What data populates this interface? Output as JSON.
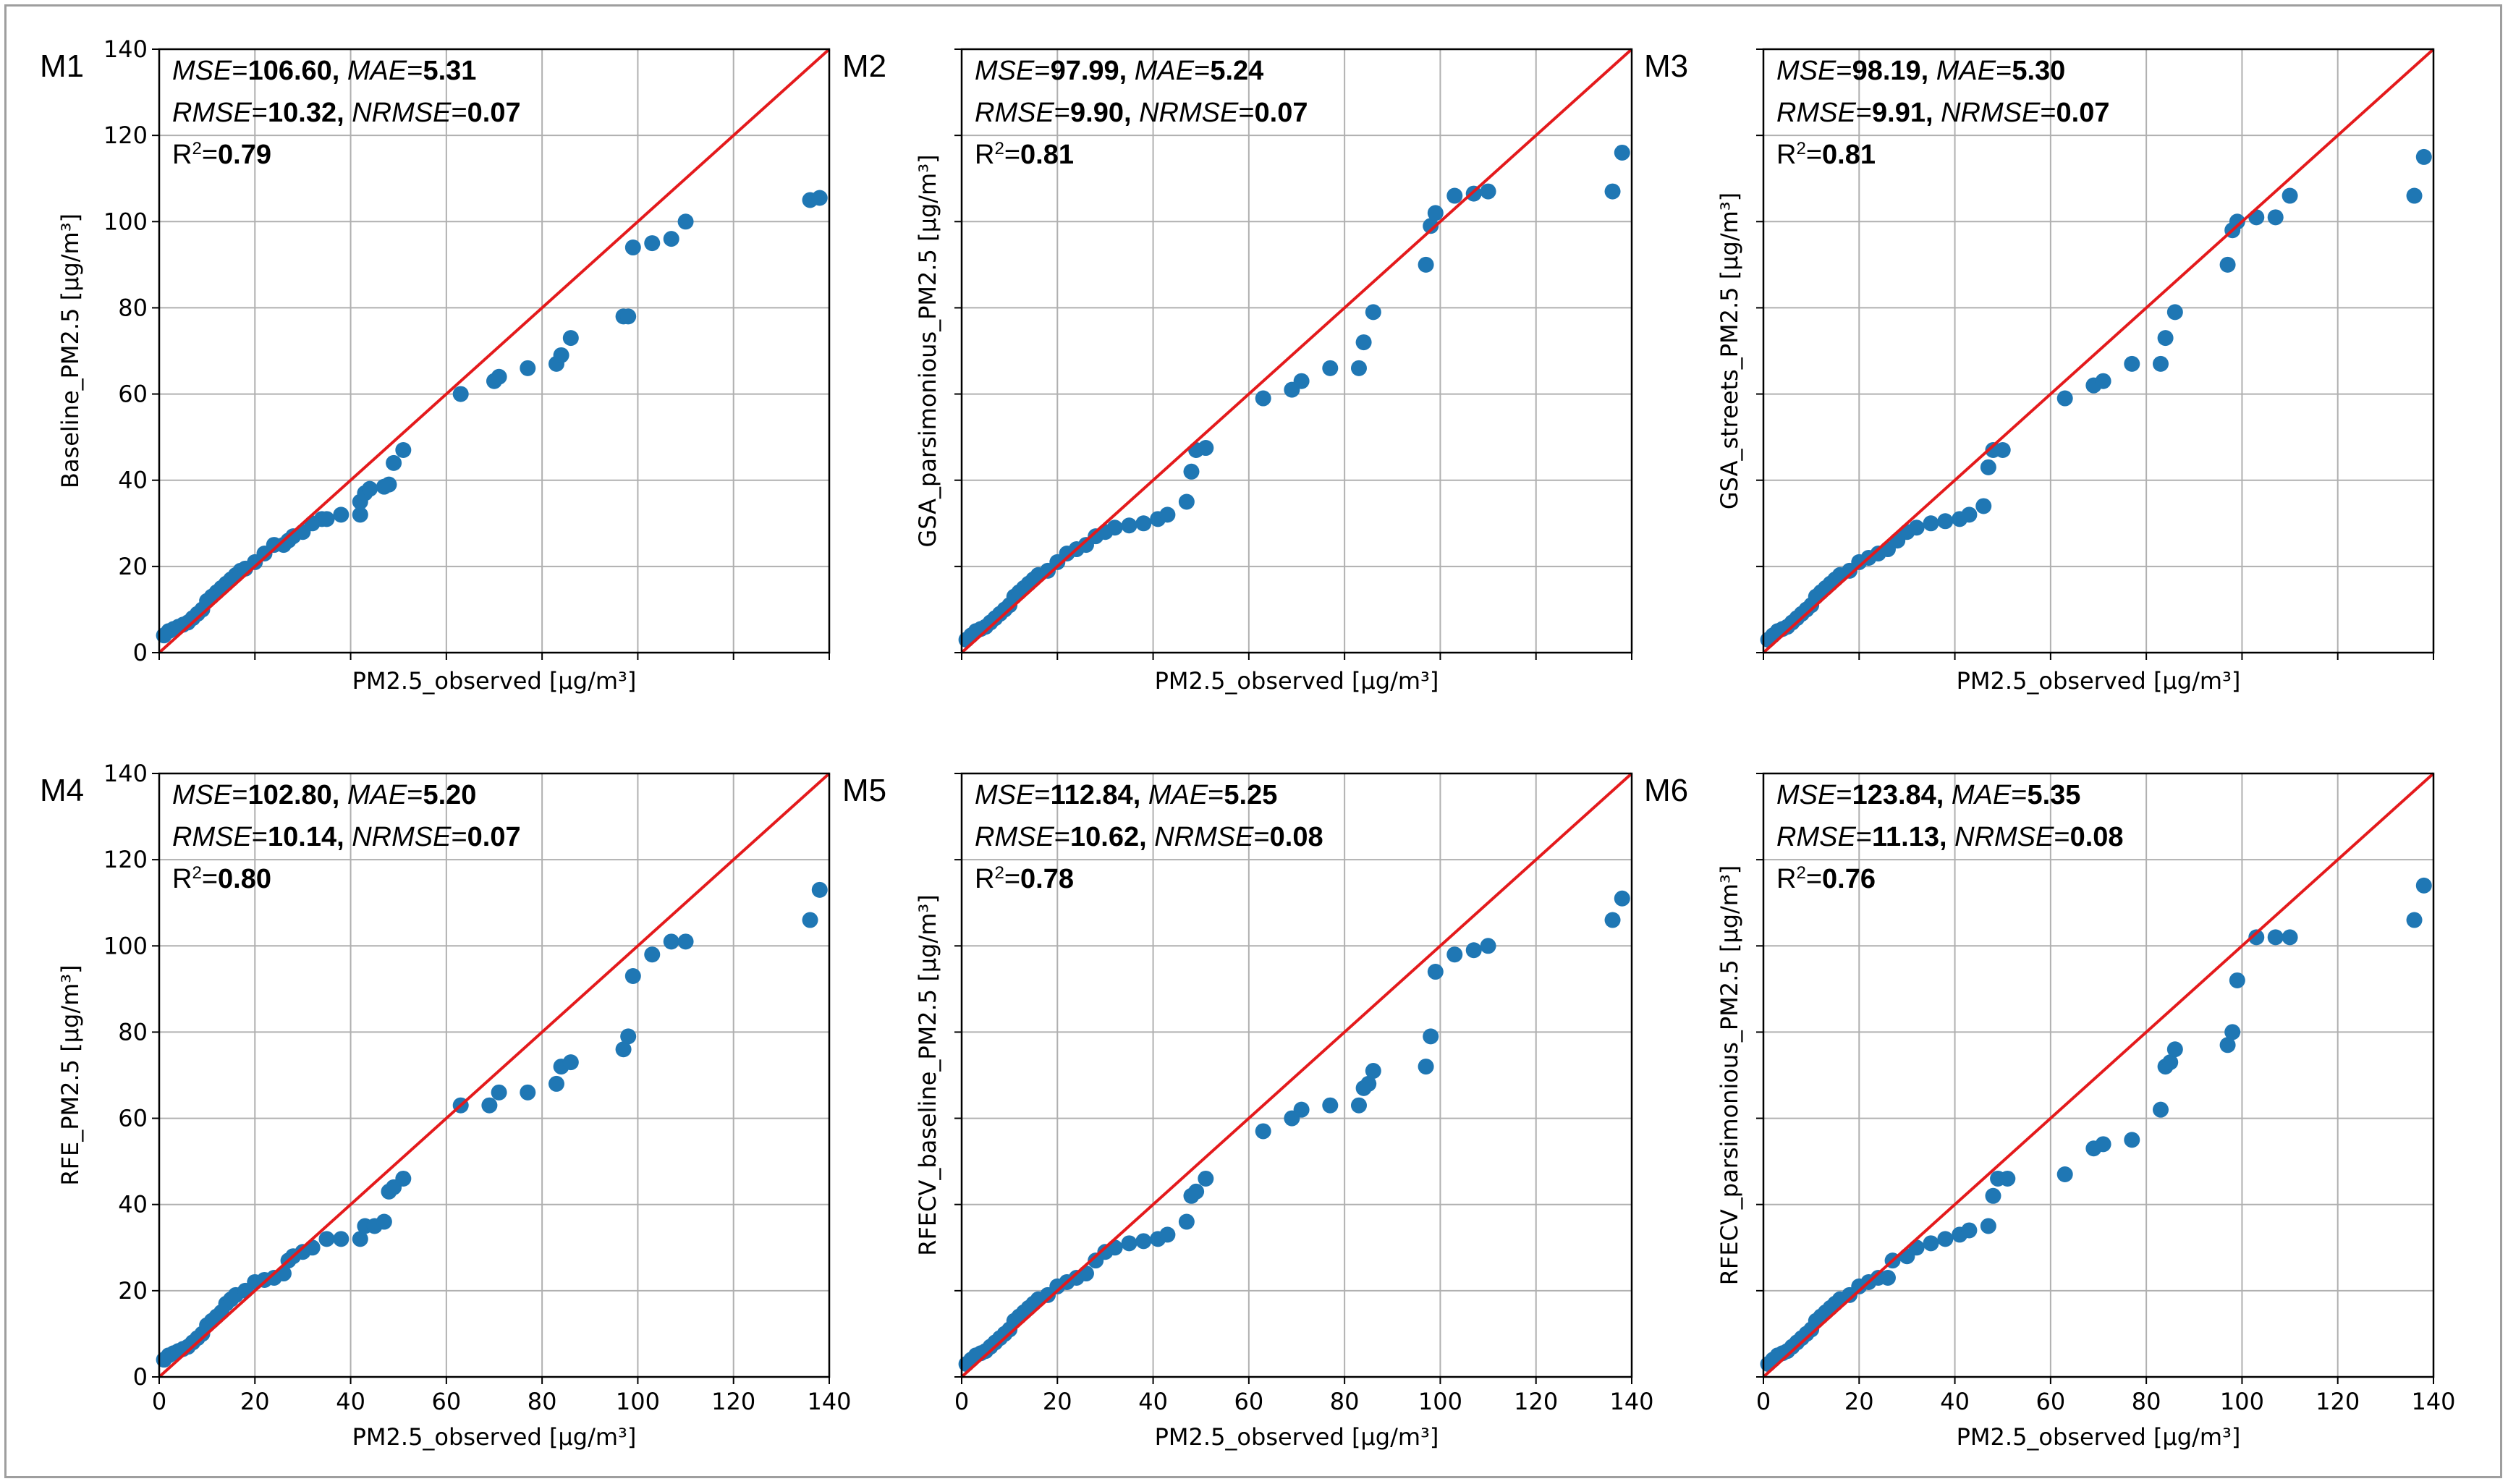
{
  "colors": {
    "points": "#1f77b4",
    "identity_line": "#e41a1c",
    "grid": "#b0b0b0"
  },
  "chart_data": [
    {
      "panel": "M1",
      "type": "scatter",
      "xlabel": "PM2.5_observed [µg/m³]",
      "ylabel": "Baseline_PM2.5 [µg/m³]",
      "xlim": [
        0,
        140
      ],
      "ylim": [
        0,
        140
      ],
      "grid": true,
      "xticks": [],
      "yticks": [
        0,
        20,
        40,
        60,
        80,
        100,
        120,
        140
      ],
      "metrics": {
        "mse": "106.60",
        "mae": "5.31",
        "rmse": "10.32",
        "nrmse": "0.07",
        "r2": "0.79"
      },
      "identity_line": [
        [
          0,
          0
        ],
        [
          140,
          140
        ]
      ],
      "points": [
        [
          1,
          4
        ],
        [
          2,
          5
        ],
        [
          3,
          5.5
        ],
        [
          4,
          6
        ],
        [
          5,
          6.5
        ],
        [
          6,
          7
        ],
        [
          7,
          8
        ],
        [
          8,
          9
        ],
        [
          9,
          10
        ],
        [
          10,
          12
        ],
        [
          11,
          13
        ],
        [
          12,
          14
        ],
        [
          13,
          15
        ],
        [
          14,
          16
        ],
        [
          15,
          17
        ],
        [
          16,
          18
        ],
        [
          17,
          19
        ],
        [
          18,
          19.5
        ],
        [
          20,
          21
        ],
        [
          22,
          23
        ],
        [
          24,
          25
        ],
        [
          26,
          25
        ],
        [
          27,
          26
        ],
        [
          28,
          27
        ],
        [
          30,
          28
        ],
        [
          32,
          30
        ],
        [
          34,
          31
        ],
        [
          35,
          31
        ],
        [
          38,
          32
        ],
        [
          42,
          32
        ],
        [
          42,
          35
        ],
        [
          43,
          37
        ],
        [
          44,
          38
        ],
        [
          47,
          38.5
        ],
        [
          48,
          39
        ],
        [
          49,
          44
        ],
        [
          51,
          47
        ],
        [
          63,
          60
        ],
        [
          70,
          63
        ],
        [
          71,
          64
        ],
        [
          77,
          66
        ],
        [
          83,
          67
        ],
        [
          84,
          69
        ],
        [
          86,
          73
        ],
        [
          97,
          78
        ],
        [
          98,
          78
        ],
        [
          99,
          94
        ],
        [
          103,
          95
        ],
        [
          107,
          96
        ],
        [
          110,
          100
        ],
        [
          136,
          105
        ],
        [
          138,
          105.5
        ]
      ]
    },
    {
      "panel": "M2",
      "type": "scatter",
      "xlabel": "PM2.5_observed [µg/m³]",
      "ylabel": "GSA_parsimonious_PM2.5 [µg/m³]",
      "xlim": [
        0,
        140
      ],
      "ylim": [
        0,
        140
      ],
      "grid": true,
      "xticks": [],
      "yticks": [],
      "metrics": {
        "mse": "97.99",
        "mae": "5.24",
        "rmse": "9.90",
        "nrmse": "0.07",
        "r2": "0.81"
      },
      "identity_line": [
        [
          0,
          0
        ],
        [
          140,
          140
        ]
      ],
      "points": [
        [
          1,
          3
        ],
        [
          2,
          4
        ],
        [
          3,
          5
        ],
        [
          4,
          5.5
        ],
        [
          5,
          6
        ],
        [
          6,
          7
        ],
        [
          7,
          8
        ],
        [
          8,
          9
        ],
        [
          9,
          10
        ],
        [
          10,
          11
        ],
        [
          11,
          13
        ],
        [
          12,
          14
        ],
        [
          13,
          15
        ],
        [
          14,
          16
        ],
        [
          15,
          17
        ],
        [
          16,
          18
        ],
        [
          18,
          19
        ],
        [
          20,
          21
        ],
        [
          22,
          23
        ],
        [
          24,
          24
        ],
        [
          26,
          25
        ],
        [
          28,
          27
        ],
        [
          30,
          28
        ],
        [
          32,
          29
        ],
        [
          35,
          29.5
        ],
        [
          38,
          30
        ],
        [
          41,
          31
        ],
        [
          43,
          32
        ],
        [
          47,
          35
        ],
        [
          48,
          42
        ],
        [
          49,
          47
        ],
        [
          51,
          47.5
        ],
        [
          63,
          59
        ],
        [
          69,
          61
        ],
        [
          71,
          63
        ],
        [
          77,
          66
        ],
        [
          83,
          66
        ],
        [
          84,
          72
        ],
        [
          86,
          79
        ],
        [
          97,
          90
        ],
        [
          98,
          99
        ],
        [
          99,
          102
        ],
        [
          103,
          106
        ],
        [
          107,
          106.5
        ],
        [
          110,
          107
        ],
        [
          136,
          107
        ],
        [
          138,
          116
        ]
      ]
    },
    {
      "panel": "M3",
      "type": "scatter",
      "xlabel": "PM2.5_observed [µg/m³]",
      "ylabel": "GSA_streets_PM2.5 [µg/m³]",
      "xlim": [
        0,
        140
      ],
      "ylim": [
        0,
        140
      ],
      "grid": true,
      "xticks": [],
      "yticks": [],
      "metrics": {
        "mse": "98.19",
        "mae": "5.30",
        "rmse": "9.91",
        "nrmse": "0.07",
        "r2": "0.81"
      },
      "identity_line": [
        [
          0,
          0
        ],
        [
          140,
          140
        ]
      ],
      "points": [
        [
          1,
          3
        ],
        [
          2,
          4
        ],
        [
          3,
          5
        ],
        [
          4,
          5.5
        ],
        [
          5,
          6
        ],
        [
          6,
          7
        ],
        [
          7,
          8
        ],
        [
          8,
          9
        ],
        [
          9,
          10
        ],
        [
          10,
          11
        ],
        [
          11,
          13
        ],
        [
          12,
          14
        ],
        [
          13,
          15
        ],
        [
          14,
          16
        ],
        [
          15,
          17
        ],
        [
          16,
          18
        ],
        [
          18,
          19
        ],
        [
          20,
          21
        ],
        [
          22,
          22
        ],
        [
          24,
          23
        ],
        [
          26,
          24
        ],
        [
          28,
          26
        ],
        [
          30,
          28
        ],
        [
          32,
          29
        ],
        [
          35,
          30
        ],
        [
          38,
          30.5
        ],
        [
          41,
          31
        ],
        [
          43,
          32
        ],
        [
          46,
          34
        ],
        [
          47,
          43
        ],
        [
          48,
          47
        ],
        [
          50,
          47
        ],
        [
          63,
          59
        ],
        [
          69,
          62
        ],
        [
          71,
          63
        ],
        [
          77,
          67
        ],
        [
          83,
          67
        ],
        [
          84,
          73
        ],
        [
          86,
          79
        ],
        [
          97,
          90
        ],
        [
          98,
          98
        ],
        [
          99,
          100
        ],
        [
          103,
          101
        ],
        [
          107,
          101
        ],
        [
          110,
          106
        ],
        [
          136,
          106
        ],
        [
          138,
          115
        ]
      ]
    },
    {
      "panel": "M4",
      "type": "scatter",
      "xlabel": "PM2.5_observed [µg/m³]",
      "ylabel": "RFE_PM2.5 [µg/m³]",
      "xlim": [
        0,
        140
      ],
      "ylim": [
        0,
        140
      ],
      "grid": true,
      "xticks": [
        0,
        20,
        40,
        60,
        80,
        100,
        120,
        140
      ],
      "yticks": [
        0,
        20,
        40,
        60,
        80,
        100,
        120,
        140
      ],
      "metrics": {
        "mse": "102.80",
        "mae": "5.20",
        "rmse": "10.14",
        "nrmse": "0.07",
        "r2": "0.80"
      },
      "identity_line": [
        [
          0,
          0
        ],
        [
          140,
          140
        ]
      ],
      "points": [
        [
          1,
          4
        ],
        [
          2,
          5
        ],
        [
          3,
          5.5
        ],
        [
          4,
          6
        ],
        [
          5,
          6.5
        ],
        [
          6,
          7
        ],
        [
          7,
          8
        ],
        [
          8,
          9
        ],
        [
          9,
          10
        ],
        [
          10,
          12
        ],
        [
          11,
          13
        ],
        [
          12,
          14
        ],
        [
          13,
          15
        ],
        [
          14,
          17
        ],
        [
          15,
          18
        ],
        [
          16,
          19
        ],
        [
          18,
          20
        ],
        [
          20,
          22
        ],
        [
          22,
          22.5
        ],
        [
          24,
          23
        ],
        [
          26,
          24
        ],
        [
          27,
          27
        ],
        [
          28,
          28
        ],
        [
          30,
          29
        ],
        [
          32,
          30
        ],
        [
          35,
          32
        ],
        [
          38,
          32
        ],
        [
          42,
          32
        ],
        [
          43,
          35
        ],
        [
          45,
          35
        ],
        [
          47,
          36
        ],
        [
          48,
          43
        ],
        [
          49,
          44
        ],
        [
          51,
          46
        ],
        [
          63,
          63
        ],
        [
          69,
          63
        ],
        [
          71,
          66
        ],
        [
          77,
          66
        ],
        [
          83,
          68
        ],
        [
          84,
          72
        ],
        [
          86,
          73
        ],
        [
          97,
          76
        ],
        [
          98,
          79
        ],
        [
          99,
          93
        ],
        [
          103,
          98
        ],
        [
          107,
          101
        ],
        [
          110,
          101
        ],
        [
          136,
          106
        ],
        [
          138,
          113
        ]
      ]
    },
    {
      "panel": "M5",
      "type": "scatter",
      "xlabel": "PM2.5_observed [µg/m³]",
      "ylabel": "RFECV_baseline_PM2.5 [µg/m³]",
      "xlim": [
        0,
        140
      ],
      "ylim": [
        0,
        140
      ],
      "grid": true,
      "xticks": [
        0,
        20,
        40,
        60,
        80,
        100,
        120,
        140
      ],
      "yticks": [],
      "metrics": {
        "mse": "112.84",
        "mae": "5.25",
        "rmse": "10.62",
        "nrmse": "0.08",
        "r2": "0.78"
      },
      "identity_line": [
        [
          0,
          0
        ],
        [
          140,
          140
        ]
      ],
      "points": [
        [
          1,
          3
        ],
        [
          2,
          4
        ],
        [
          3,
          5
        ],
        [
          4,
          5.5
        ],
        [
          5,
          6
        ],
        [
          6,
          7
        ],
        [
          7,
          8
        ],
        [
          8,
          9
        ],
        [
          9,
          10
        ],
        [
          10,
          11
        ],
        [
          11,
          13
        ],
        [
          12,
          14
        ],
        [
          13,
          15
        ],
        [
          14,
          16
        ],
        [
          15,
          17
        ],
        [
          16,
          18
        ],
        [
          18,
          19
        ],
        [
          20,
          21
        ],
        [
          22,
          22
        ],
        [
          24,
          23
        ],
        [
          26,
          24
        ],
        [
          28,
          27
        ],
        [
          30,
          29
        ],
        [
          32,
          30
        ],
        [
          35,
          31
        ],
        [
          38,
          31.5
        ],
        [
          41,
          32
        ],
        [
          43,
          33
        ],
        [
          47,
          36
        ],
        [
          48,
          42
        ],
        [
          49,
          43
        ],
        [
          51,
          46
        ],
        [
          63,
          57
        ],
        [
          69,
          60
        ],
        [
          71,
          62
        ],
        [
          77,
          63
        ],
        [
          83,
          63
        ],
        [
          84,
          67
        ],
        [
          85,
          68
        ],
        [
          86,
          71
        ],
        [
          97,
          72
        ],
        [
          98,
          79
        ],
        [
          99,
          94
        ],
        [
          103,
          98
        ],
        [
          107,
          99
        ],
        [
          110,
          100
        ],
        [
          136,
          106
        ],
        [
          138,
          111
        ]
      ]
    },
    {
      "panel": "M6",
      "type": "scatter",
      "xlabel": "PM2.5_observed [µg/m³]",
      "ylabel": "RFECV_parsimonious_PM2.5 [µg/m³]",
      "xlim": [
        0,
        140
      ],
      "ylim": [
        0,
        140
      ],
      "grid": true,
      "xticks": [
        0,
        20,
        40,
        60,
        80,
        100,
        120,
        140
      ],
      "yticks": [],
      "metrics": {
        "mse": "123.84",
        "mae": "5.35",
        "rmse": "11.13",
        "nrmse": "0.08",
        "r2": "0.76"
      },
      "identity_line": [
        [
          0,
          0
        ],
        [
          140,
          140
        ]
      ],
      "points": [
        [
          1,
          3
        ],
        [
          2,
          4
        ],
        [
          3,
          5
        ],
        [
          4,
          5.5
        ],
        [
          5,
          6
        ],
        [
          6,
          7
        ],
        [
          7,
          8
        ],
        [
          8,
          9
        ],
        [
          9,
          10
        ],
        [
          10,
          11
        ],
        [
          11,
          13
        ],
        [
          12,
          14
        ],
        [
          13,
          15
        ],
        [
          14,
          16
        ],
        [
          15,
          17
        ],
        [
          16,
          18
        ],
        [
          18,
          19
        ],
        [
          20,
          21
        ],
        [
          22,
          22
        ],
        [
          24,
          23
        ],
        [
          26,
          23
        ],
        [
          27,
          27
        ],
        [
          30,
          28
        ],
        [
          32,
          30
        ],
        [
          35,
          31
        ],
        [
          38,
          32
        ],
        [
          41,
          33
        ],
        [
          43,
          34
        ],
        [
          47,
          35
        ],
        [
          48,
          42
        ],
        [
          49,
          46
        ],
        [
          51,
          46
        ],
        [
          63,
          47
        ],
        [
          69,
          53
        ],
        [
          71,
          54
        ],
        [
          77,
          55
        ],
        [
          83,
          62
        ],
        [
          84,
          72
        ],
        [
          85,
          73
        ],
        [
          86,
          76
        ],
        [
          97,
          77
        ],
        [
          98,
          80
        ],
        [
          99,
          92
        ],
        [
          103,
          102
        ],
        [
          107,
          102
        ],
        [
          110,
          102
        ],
        [
          136,
          106
        ],
        [
          138,
          114
        ]
      ]
    }
  ]
}
